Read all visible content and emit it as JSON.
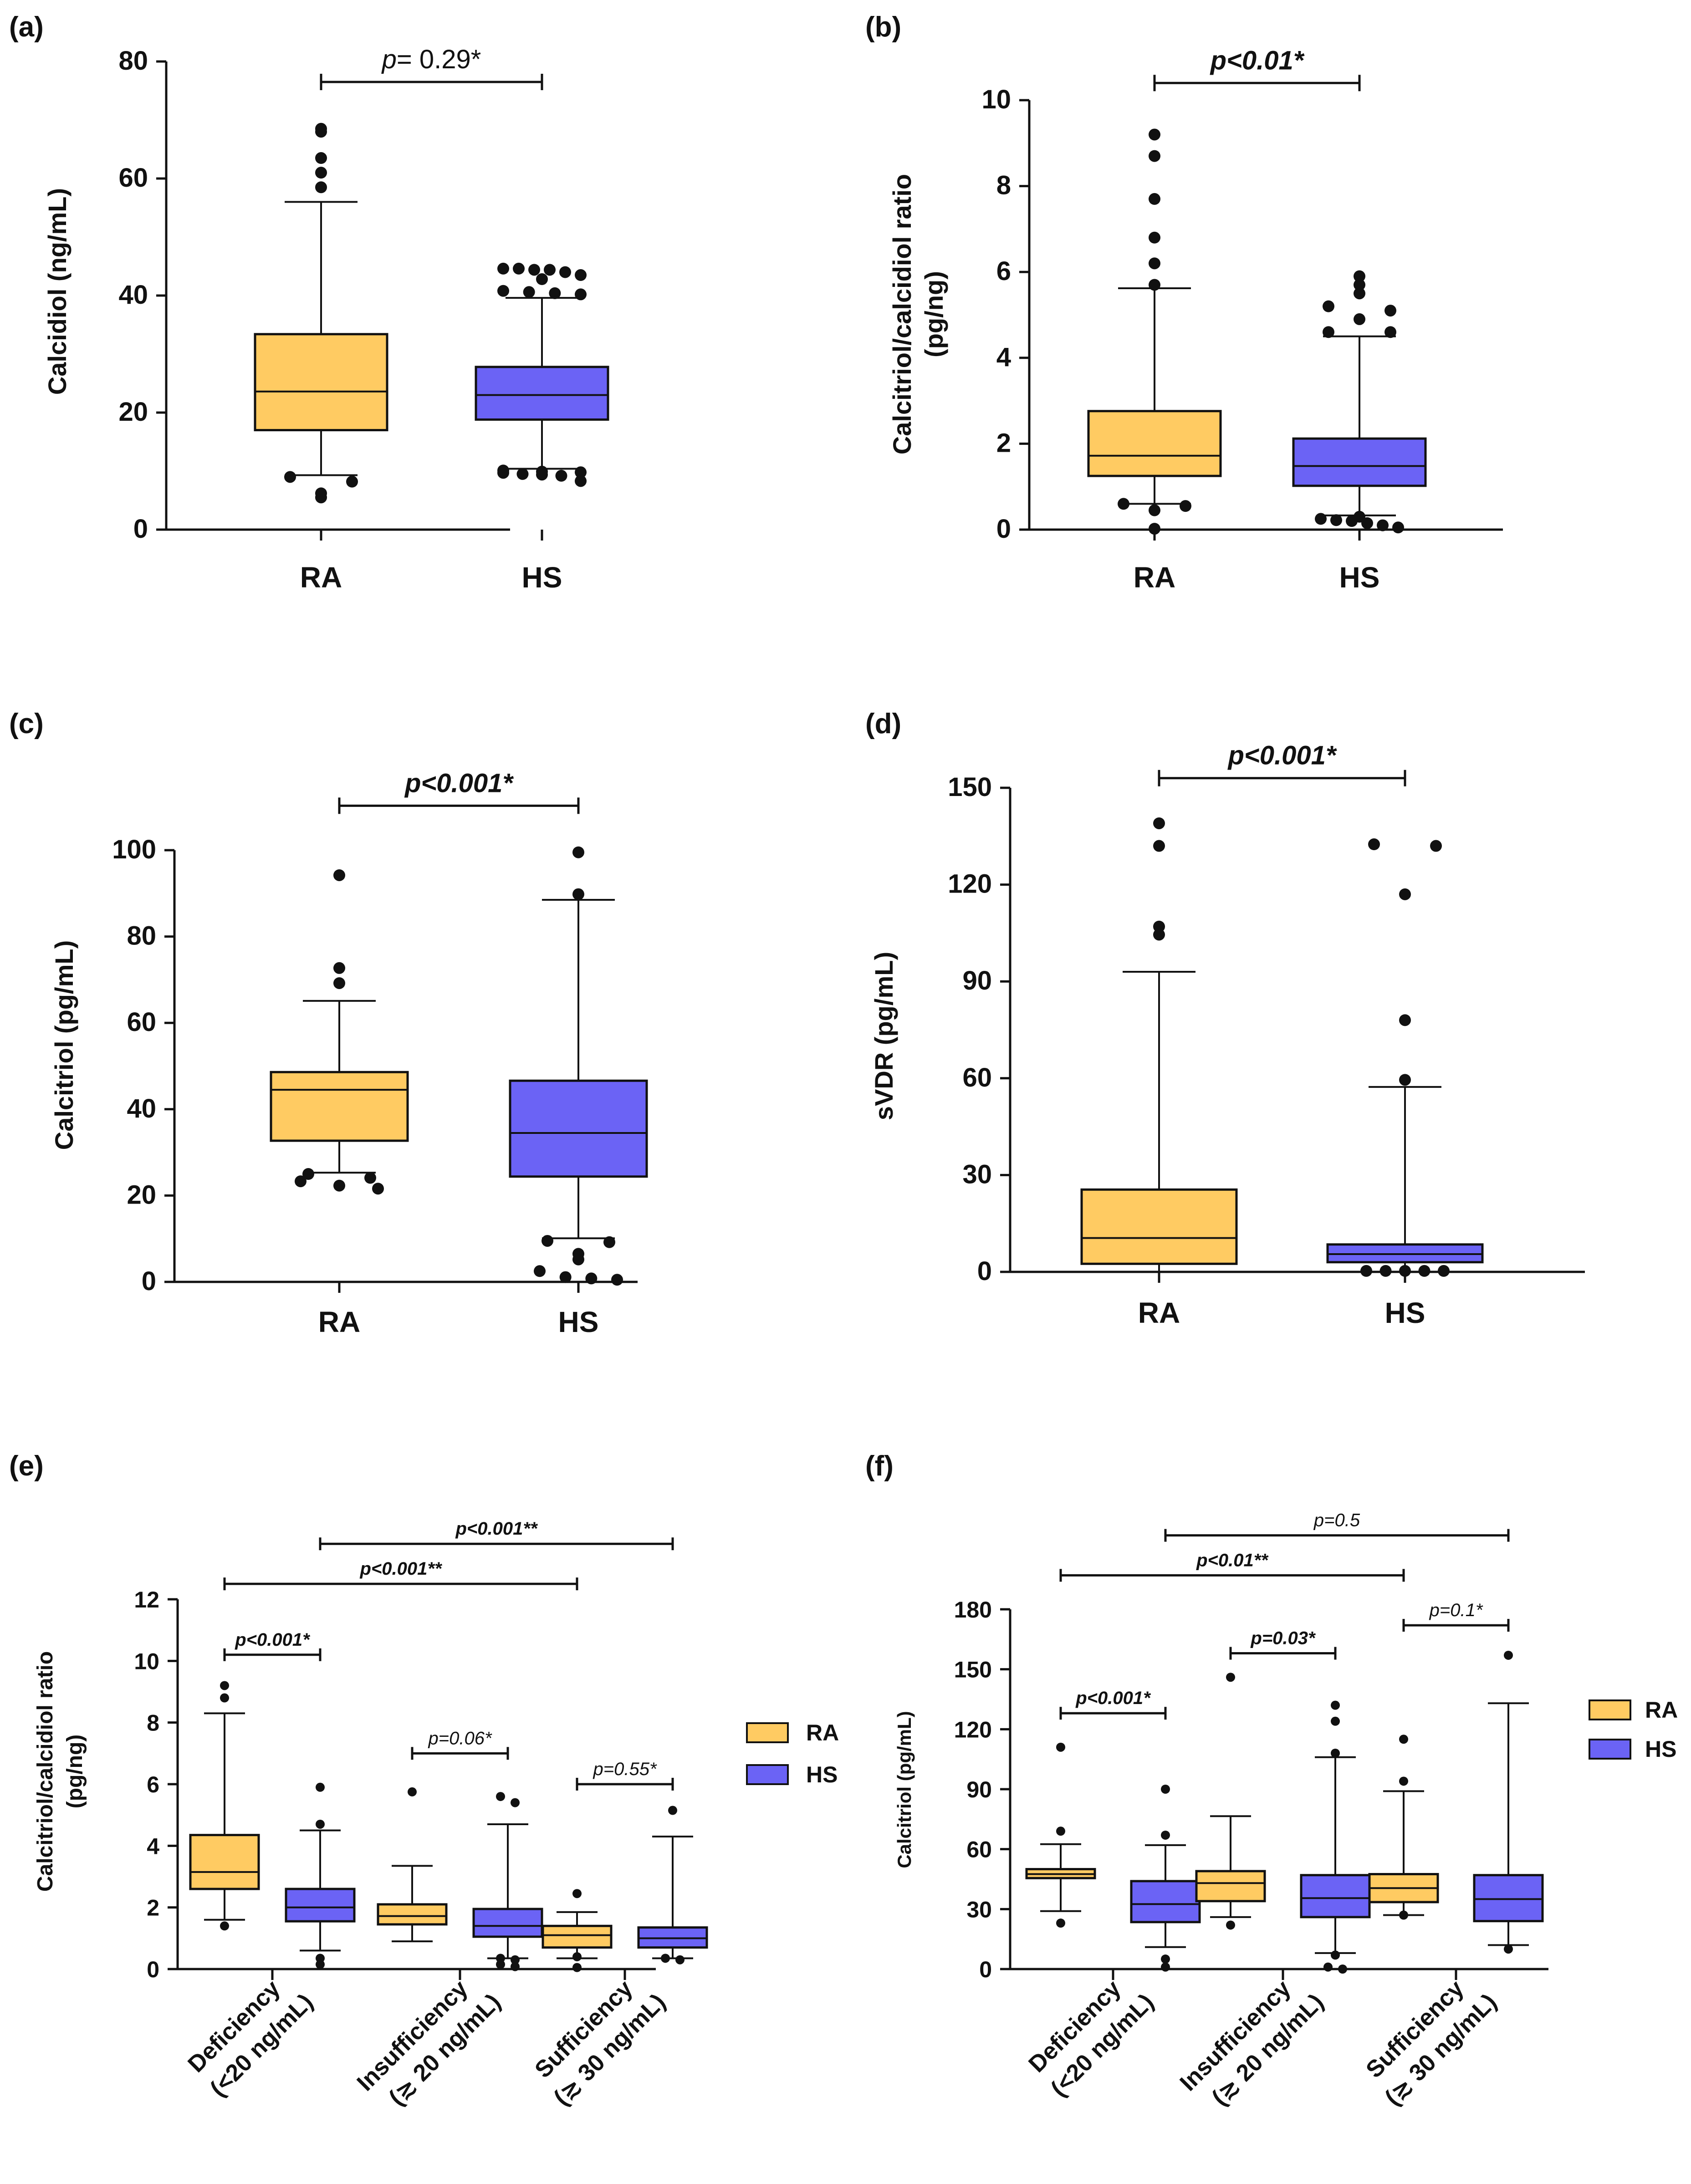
{
  "colors": {
    "RA": "#FFCB62",
    "HS": "#6B63F5",
    "stroke": "#111111"
  },
  "legend": {
    "items": [
      "RA",
      "HS"
    ]
  },
  "chart_data": [
    {
      "panel": "(a)",
      "type": "box",
      "ylabel": "Calcidiol (ng/mL)",
      "ylim": [
        0,
        80
      ],
      "yticks": [
        0,
        20,
        40,
        60,
        80
      ],
      "categories": [
        "RA",
        "HS"
      ],
      "boxes": [
        {
          "group": "RA",
          "q1": 17,
          "median": 23.6,
          "q3": 33.4,
          "whisker_low": 9.3,
          "whisker_high": 56,
          "outliers": [
            68.5,
            68,
            63.5,
            61,
            58.5,
            9,
            8.2,
            6.2,
            5.5
          ]
        },
        {
          "group": "HS",
          "q1": 18.8,
          "median": 23,
          "q3": 27.8,
          "whisker_low": 10.4,
          "whisker_high": 39.6,
          "outliers": [
            44.6,
            44.6,
            44.4,
            44.4,
            44,
            43.5,
            42.8,
            40.8,
            40.6,
            40.4,
            40.2,
            10.1,
            9.9,
            9.8,
            9.7,
            9.5,
            9.4,
            9.2,
            8.3
          ]
        }
      ],
      "comparisons": [
        {
          "label": "p= 0.29*",
          "from": "RA",
          "to": "HS",
          "at": 76.5
        }
      ]
    },
    {
      "panel": "(b)",
      "type": "box",
      "ylabel": "Calcitriol/calcidiol ratio (pg/ng)",
      "ylim": [
        0,
        10
      ],
      "yticks": [
        0,
        2,
        4,
        6,
        8,
        10
      ],
      "categories": [
        "RA",
        "HS"
      ],
      "boxes": [
        {
          "group": "RA",
          "q1": 1.25,
          "median": 1.72,
          "q3": 2.76,
          "whisker_low": 0.6,
          "whisker_high": 5.62,
          "outliers": [
            9.2,
            8.7,
            7.7,
            6.8,
            6.2,
            5.7,
            0.6,
            0.55,
            0.45,
            0.02
          ]
        },
        {
          "group": "HS",
          "q1": 1.02,
          "median": 1.48,
          "q3": 2.12,
          "whisker_low": 0.33,
          "whisker_high": 4.5,
          "outliers": [
            5.9,
            5.7,
            5.5,
            5.2,
            5.1,
            4.9,
            4.6,
            4.6,
            0.3,
            0.25,
            0.22,
            0.2,
            0.15,
            0.1,
            0.05
          ]
        }
      ],
      "comparisons": [
        {
          "label": "p<0.01*",
          "from": "RA",
          "to": "HS",
          "at": 10.4
        }
      ]
    },
    {
      "panel": "(c)",
      "type": "box",
      "ylabel": "Calcitriol (pg/mL)",
      "ylim": [
        0,
        100
      ],
      "yticks": [
        0,
        20,
        40,
        60,
        80,
        100
      ],
      "categories": [
        "RA",
        "HS"
      ],
      "boxes": [
        {
          "group": "RA",
          "q1": 32.7,
          "median": 44.5,
          "q3": 48.6,
          "whisker_low": 25.3,
          "whisker_high": 65.1,
          "outliers": [
            94.2,
            72.7,
            69.2,
            25,
            24.1,
            23.3,
            22.3,
            21.6
          ]
        },
        {
          "group": "HS",
          "q1": 24.4,
          "median": 34.5,
          "q3": 46.6,
          "whisker_low": 10.1,
          "whisker_high": 88.5,
          "outliers": [
            99.5,
            89.8,
            9.5,
            9.2,
            6.5,
            5.2,
            2.5,
            1.1,
            0.8,
            0.5
          ]
        }
      ],
      "comparisons": [
        {
          "label": "p<0.001*",
          "from": "RA",
          "to": "HS",
          "at": 110.3
        }
      ]
    },
    {
      "panel": "(d)",
      "type": "box",
      "ylabel": "sVDR (pg/mL)",
      "ylim": [
        0,
        150
      ],
      "yticks": [
        0,
        30,
        60,
        90,
        120,
        150
      ],
      "categories": [
        "RA",
        "HS"
      ],
      "boxes": [
        {
          "group": "RA",
          "q1": 2.5,
          "median": 10.5,
          "q3": 25.5,
          "whisker_low": 0,
          "whisker_high": 93,
          "outliers": [
            139,
            132,
            107,
            104.5
          ]
        },
        {
          "group": "HS",
          "q1": 3,
          "median": 5.5,
          "q3": 8.5,
          "whisker_low": 0,
          "whisker_high": 57.3,
          "outliers": [
            132.5,
            132,
            117,
            78,
            59.5,
            0.3,
            0.3,
            0.3,
            0.3,
            0.3
          ]
        }
      ],
      "comparisons": [
        {
          "label": "p<0.001*",
          "from": "RA",
          "to": "HS",
          "at": 153
        }
      ]
    },
    {
      "panel": "(e)",
      "type": "box",
      "ylabel": "Calcitriol/calcidiol ratio (pg/ng)",
      "ylim": [
        0,
        12
      ],
      "yticks": [
        0,
        2,
        4,
        6,
        8,
        10,
        12
      ],
      "categories": [
        "Deficiency (<20 ng/mL)",
        "Insufficiency (≳ 20 ng/mL)",
        "Sufficiency (≳ 30 ng/mL)"
      ],
      "series": [
        "RA",
        "HS"
      ],
      "boxes": [
        {
          "category": 0,
          "group": "RA",
          "q1": 2.6,
          "median": 3.15,
          "q3": 4.35,
          "whisker_low": 1.6,
          "whisker_high": 8.3,
          "outliers": [
            9.2,
            8.8,
            1.4
          ]
        },
        {
          "category": 0,
          "group": "HS",
          "q1": 1.55,
          "median": 2.0,
          "q3": 2.6,
          "whisker_low": 0.6,
          "whisker_high": 4.5,
          "outliers": [
            5.9,
            4.7,
            0.35,
            0.15
          ]
        },
        {
          "category": 1,
          "group": "RA",
          "q1": 1.45,
          "median": 1.72,
          "q3": 2.1,
          "whisker_low": 0.9,
          "whisker_high": 3.35,
          "outliers": [
            5.75
          ]
        },
        {
          "category": 1,
          "group": "HS",
          "q1": 1.05,
          "median": 1.4,
          "q3": 1.95,
          "whisker_low": 0.35,
          "whisker_high": 4.7,
          "outliers": [
            5.6,
            5.4,
            0.35,
            0.3,
            0.15,
            0.08
          ]
        },
        {
          "category": 2,
          "group": "RA",
          "q1": 0.7,
          "median": 1.1,
          "q3": 1.4,
          "whisker_low": 0.35,
          "whisker_high": 1.85,
          "outliers": [
            2.45,
            0.4,
            0.05
          ]
        },
        {
          "category": 2,
          "group": "HS",
          "q1": 0.7,
          "median": 1.0,
          "q3": 1.35,
          "whisker_low": 0.35,
          "whisker_high": 4.3,
          "outliers": [
            5.15,
            0.35,
            0.3
          ]
        }
      ],
      "comparisons": [
        {
          "label": "p<0.001*",
          "from": [
            0,
            "RA"
          ],
          "to": [
            0,
            "HS"
          ],
          "at": 10.2,
          "bold": true
        },
        {
          "label": "p=0.06*",
          "from": [
            1,
            "RA"
          ],
          "to": [
            1,
            "HS"
          ],
          "at": 7.0,
          "bold": false
        },
        {
          "label": "p=0.55*",
          "from": [
            2,
            "RA"
          ],
          "to": [
            2,
            "HS"
          ],
          "at": 6.0,
          "bold": false
        },
        {
          "label": "p<0.001**",
          "from": [
            0,
            "RA"
          ],
          "to": [
            2,
            "RA"
          ],
          "at": 12.5,
          "bold": true
        },
        {
          "label": "p<0.001**",
          "from": [
            0,
            "HS"
          ],
          "to": [
            2,
            "HS"
          ],
          "at": 13.8,
          "bold": true
        }
      ]
    },
    {
      "panel": "(f)",
      "type": "box",
      "ylabel": "Calcitriol (pg/mL)",
      "ylim": [
        0,
        180
      ],
      "yticks": [
        0,
        30,
        60,
        90,
        120,
        150,
        180
      ],
      "categories": [
        "Deficiency (<20 ng/mL)",
        "Insufficiency (≳ 20 ng/mL)",
        "Sufficiency (≳ 30 ng/mL)"
      ],
      "series": [
        "RA",
        "HS"
      ],
      "boxes": [
        {
          "category": 0,
          "group": "RA",
          "q1": 45.5,
          "median": 47.5,
          "q3": 50,
          "whisker_low": 29,
          "whisker_high": 62.5,
          "outliers": [
            111,
            69,
            23
          ]
        },
        {
          "category": 0,
          "group": "HS",
          "q1": 23.5,
          "median": 32.5,
          "q3": 44,
          "whisker_low": 11,
          "whisker_high": 62,
          "outliers": [
            90,
            67,
            5,
            1
          ]
        },
        {
          "category": 1,
          "group": "RA",
          "q1": 34,
          "median": 43,
          "q3": 49,
          "whisker_low": 26,
          "whisker_high": 76.5,
          "outliers": [
            146,
            22
          ]
        },
        {
          "category": 1,
          "group": "HS",
          "q1": 26,
          "median": 35.5,
          "q3": 47,
          "whisker_low": 8,
          "whisker_high": 106,
          "outliers": [
            132,
            124,
            108,
            7,
            1,
            0
          ]
        },
        {
          "category": 2,
          "group": "RA",
          "q1": 33.5,
          "median": 40.5,
          "q3": 47.5,
          "whisker_low": 27,
          "whisker_high": 89,
          "outliers": [
            115,
            94,
            27
          ]
        },
        {
          "category": 2,
          "group": "HS",
          "q1": 24,
          "median": 35,
          "q3": 47,
          "whisker_low": 12,
          "whisker_high": 133,
          "outliers": [
            157,
            10
          ]
        }
      ],
      "comparisons": [
        {
          "label": "p<0.001*",
          "from": [
            0,
            "RA"
          ],
          "to": [
            0,
            "HS"
          ],
          "at": 128,
          "bold": true
        },
        {
          "label": "p=0.03*",
          "from": [
            1,
            "RA"
          ],
          "to": [
            1,
            "HS"
          ],
          "at": 158,
          "bold": true
        },
        {
          "label": "p=0.1*",
          "from": [
            2,
            "RA"
          ],
          "to": [
            2,
            "HS"
          ],
          "at": 172,
          "bold": false
        },
        {
          "label": "p<0.01**",
          "from": [
            0,
            "RA"
          ],
          "to": [
            2,
            "RA"
          ],
          "at": 197,
          "bold": true
        },
        {
          "label": "p=0.5",
          "from": [
            0,
            "HS"
          ],
          "to": [
            2,
            "HS"
          ],
          "at": 217,
          "bold": false
        }
      ]
    }
  ]
}
